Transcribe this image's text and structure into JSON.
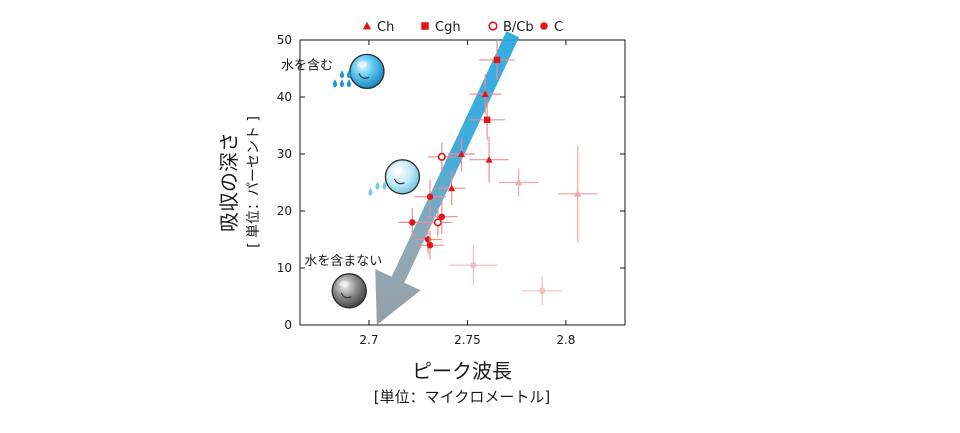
{
  "chart_data": {
    "type": "scatter",
    "xlabel": "ピーク波長",
    "xlabel_unit": "[単位：マイクロメートル]",
    "ylabel": "吸収の深さ",
    "ylabel_unit": "[ 単位：パーセント ]",
    "xlim": [
      2.665,
      2.83
    ],
    "ylim": [
      0,
      50
    ],
    "x_ticks": [
      2.7,
      2.75,
      2.8
    ],
    "x_tick_labels": [
      "2.7",
      "2.75",
      "2.8"
    ],
    "y_ticks": [
      0,
      10,
      20,
      30,
      40,
      50
    ],
    "y_tick_labels": [
      "0",
      "10",
      "20",
      "30",
      "40",
      "50"
    ],
    "grid": false,
    "legend_position": "top",
    "legend": [
      {
        "label": "Ch",
        "marker": "triangle"
      },
      {
        "label": "Cgh",
        "marker": "square"
      },
      {
        "label": "B/Cb",
        "marker": "open-circle"
      },
      {
        "label": "C",
        "marker": "circle"
      }
    ],
    "series": [
      {
        "name": "Ch",
        "marker": "triangle",
        "color": "#e0161a",
        "points": [
          {
            "x": 2.759,
            "y": 40.5,
            "xerr": 0.008,
            "yerr": 3.5
          },
          {
            "x": 2.747,
            "y": 30.0,
            "xerr": 0.007,
            "yerr": 3.0
          },
          {
            "x": 2.761,
            "y": 29.0,
            "xerr": 0.01,
            "yerr": 4.0
          },
          {
            "x": 2.742,
            "y": 24.0,
            "xerr": 0.007,
            "yerr": 3.0
          }
        ]
      },
      {
        "name": "Cgh",
        "marker": "square",
        "color": "#e0161a",
        "points": [
          {
            "x": 2.765,
            "y": 46.5,
            "xerr": 0.009,
            "yerr": 3.5
          },
          {
            "x": 2.76,
            "y": 36.0,
            "xerr": 0.009,
            "yerr": 3.5
          }
        ]
      },
      {
        "name": "B/Cb",
        "marker": "open-circle",
        "color": "#e0161a",
        "points": [
          {
            "x": 2.737,
            "y": 29.5,
            "xerr": 0.007,
            "yerr": 2.5
          },
          {
            "x": 2.735,
            "y": 18.0,
            "xerr": 0.007,
            "yerr": 2.5
          }
        ]
      },
      {
        "name": "C",
        "marker": "circle",
        "color": "#e0161a",
        "points": [
          {
            "x": 2.731,
            "y": 22.5,
            "xerr": 0.008,
            "yerr": 3.0
          },
          {
            "x": 2.737,
            "y": 19.0,
            "xerr": 0.008,
            "yerr": 3.0
          },
          {
            "x": 2.722,
            "y": 18.0,
            "xerr": 0.007,
            "yerr": 2.5
          },
          {
            "x": 2.73,
            "y": 15.0,
            "xerr": 0.007,
            "yerr": 2.5
          },
          {
            "x": 2.731,
            "y": 14.0,
            "xerr": 0.007,
            "yerr": 2.5
          }
        ]
      },
      {
        "name": "",
        "marker": "triangle",
        "color": "#f2a8aa",
        "faded": true,
        "points": [
          {
            "x": 2.776,
            "y": 25.0,
            "xerr": 0.01,
            "yerr": 2.5
          },
          {
            "x": 2.806,
            "y": 23.0,
            "xerr": 0.01,
            "yerr": 8.5
          }
        ]
      },
      {
        "name": "",
        "marker": "circle",
        "color": "#f5c0c2",
        "faded": true,
        "points": [
          {
            "x": 2.753,
            "y": 10.5,
            "xerr": 0.012,
            "yerr": 3.5
          },
          {
            "x": 2.788,
            "y": 6.0,
            "xerr": 0.01,
            "yerr": 2.5
          }
        ]
      }
    ],
    "trend_arrow": {
      "from": {
        "x": 2.773,
        "y": 51
      },
      "to": {
        "x": 2.704,
        "y": 0
      }
    },
    "annotations": [
      {
        "text": "水を含む",
        "icon": "water-rich-sphere-icon",
        "droplets": 5,
        "x": 2.699,
        "y": 44.5
      },
      {
        "text": "",
        "icon": "partially-hydrated-sphere-icon",
        "droplets": 3,
        "x": 2.717,
        "y": 26.0
      },
      {
        "text": "水を含まない",
        "icon": "dry-sphere-icon",
        "droplets": 0,
        "x": 2.69,
        "y": 6.0
      }
    ]
  }
}
